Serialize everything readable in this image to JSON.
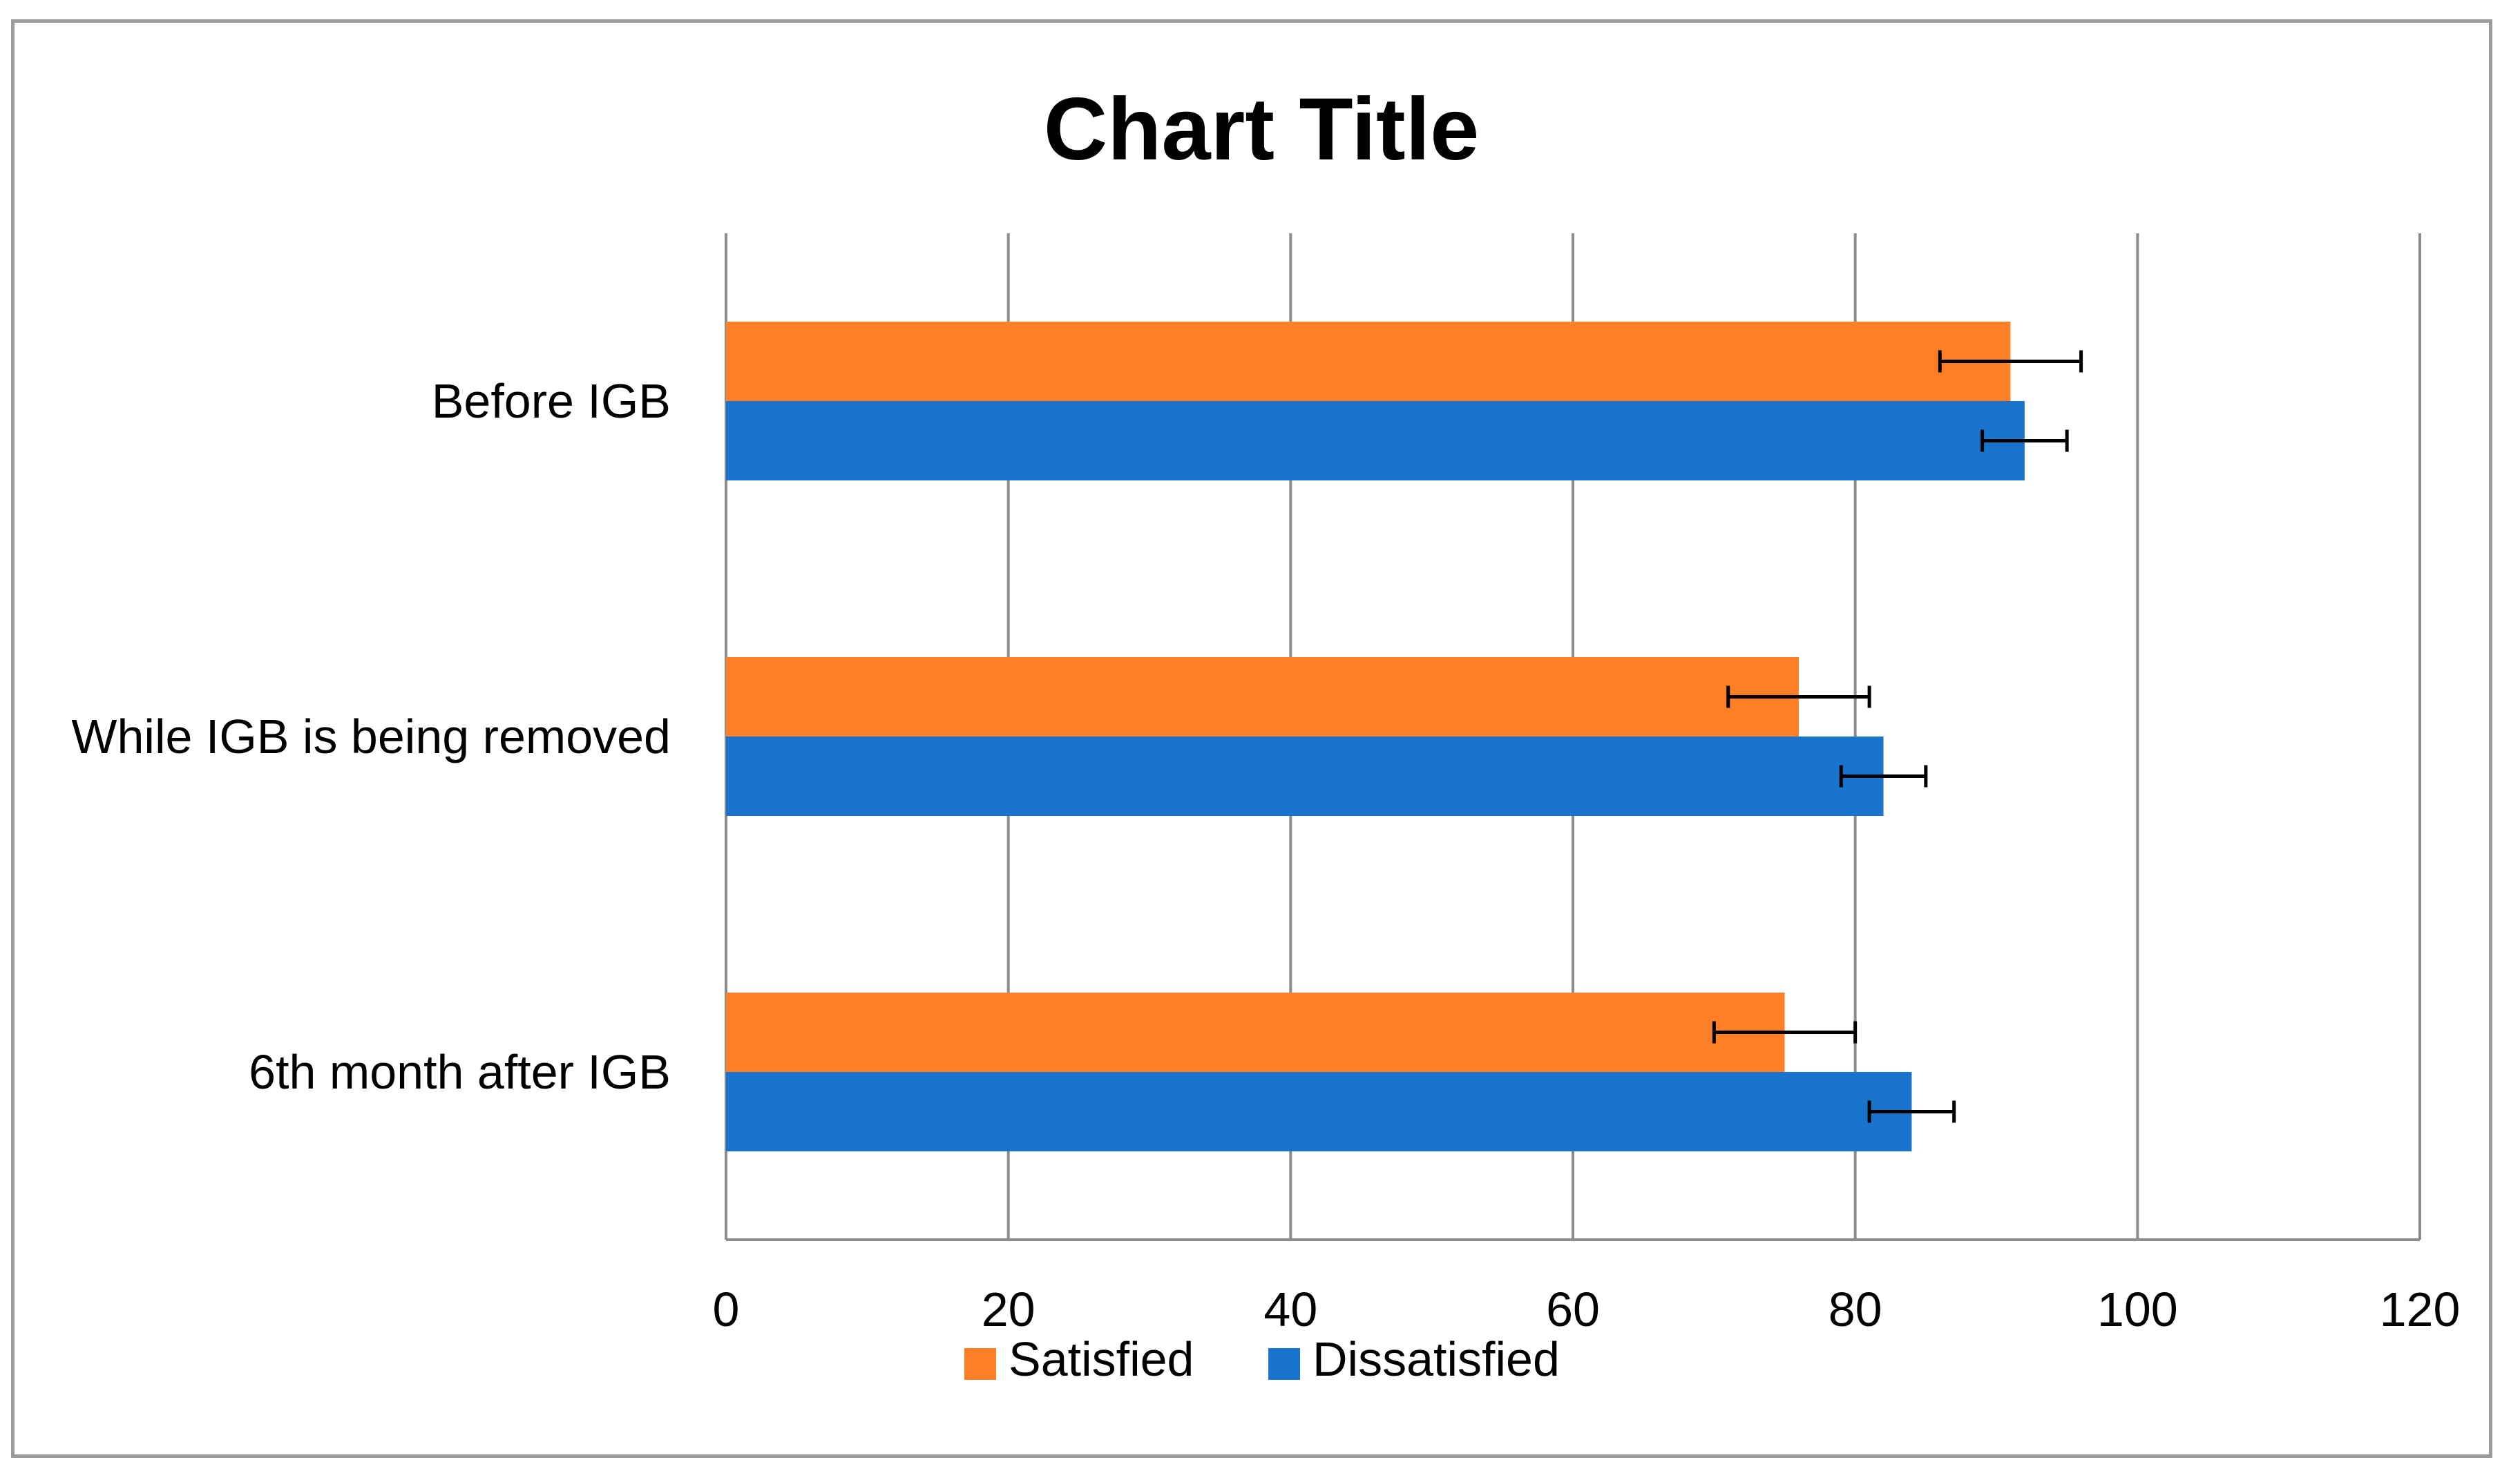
{
  "chart_data": {
    "type": "bar",
    "orientation": "horizontal",
    "title": "Chart Title",
    "categories": [
      "Before IGB",
      "While IGB is being removed",
      "6th month after IGB"
    ],
    "series": [
      {
        "name": "Satisfied",
        "color": "#FF7F27",
        "values": [
          91,
          76,
          75
        ],
        "error": [
          5,
          5,
          5
        ]
      },
      {
        "name": "Dissatisfied",
        "color": "#1874CD",
        "values": [
          92,
          82,
          84
        ],
        "error": [
          3,
          3,
          3
        ]
      }
    ],
    "xlim": [
      0,
      120
    ],
    "xticks": [
      0,
      20,
      40,
      60,
      80,
      100,
      120
    ],
    "xtick_labels": [
      "0",
      "20",
      "40",
      "60",
      "80",
      "100",
      "120"
    ],
    "xlabel": "",
    "ylabel": "",
    "grid": "vertical",
    "legend": "bottom"
  }
}
